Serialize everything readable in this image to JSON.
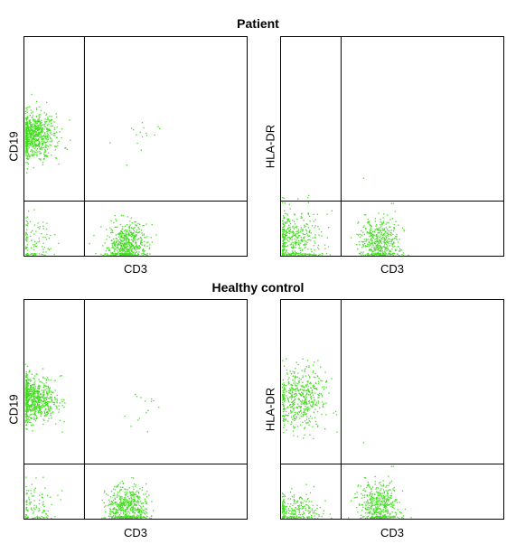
{
  "chart_data": [
    {
      "type": "scatter",
      "section": "Patient",
      "xlabel": "CD3",
      "ylabel": "CD19",
      "xlim": [
        0,
        1
      ],
      "ylim": [
        0,
        1
      ],
      "gates": {
        "x": 0.27,
        "y": 0.25
      },
      "color": "#44dd22",
      "populations": [
        {
          "cx": 0.04,
          "cy": 0.55,
          "sx": 0.05,
          "sy": 0.05,
          "n": 750
        },
        {
          "cx": 0.46,
          "cy": 0.05,
          "sx": 0.045,
          "sy": 0.05,
          "n": 550
        },
        {
          "cx": 0.04,
          "cy": 0.05,
          "sx": 0.05,
          "sy": 0.06,
          "n": 110
        },
        {
          "cx": 0.5,
          "cy": 0.52,
          "sx": 0.05,
          "sy": 0.06,
          "n": 16
        }
      ]
    },
    {
      "type": "scatter",
      "section": "Patient",
      "xlabel": "CD3",
      "ylabel": "HLA-DR",
      "xlim": [
        0,
        1
      ],
      "ylim": [
        0,
        1
      ],
      "gates": {
        "x": 0.27,
        "y": 0.25
      },
      "color": "#44dd22",
      "populations": [
        {
          "cx": 0.05,
          "cy": 0.07,
          "sx": 0.07,
          "sy": 0.07,
          "n": 450
        },
        {
          "cx": 0.44,
          "cy": 0.06,
          "sx": 0.045,
          "sy": 0.055,
          "n": 450
        },
        {
          "cx": 0.37,
          "cy": 0.36,
          "sx": 0.004,
          "sy": 0.004,
          "n": 1
        }
      ]
    },
    {
      "type": "scatter",
      "section": "Healthy control",
      "xlabel": "CD3",
      "ylabel": "CD19",
      "xlim": [
        0,
        1
      ],
      "ylim": [
        0,
        1
      ],
      "gates": {
        "x": 0.27,
        "y": 0.25
      },
      "color": "#44dd22",
      "populations": [
        {
          "cx": 0.04,
          "cy": 0.55,
          "sx": 0.05,
          "sy": 0.05,
          "n": 750
        },
        {
          "cx": 0.46,
          "cy": 0.05,
          "sx": 0.045,
          "sy": 0.05,
          "n": 550
        },
        {
          "cx": 0.04,
          "cy": 0.05,
          "sx": 0.05,
          "sy": 0.06,
          "n": 110
        },
        {
          "cx": 0.5,
          "cy": 0.52,
          "sx": 0.05,
          "sy": 0.06,
          "n": 16
        }
      ]
    },
    {
      "type": "scatter",
      "section": "Healthy control",
      "xlabel": "CD3",
      "ylabel": "HLA-DR",
      "xlim": [
        0,
        1
      ],
      "ylim": [
        0,
        1
      ],
      "gates": {
        "x": 0.27,
        "y": 0.25
      },
      "color": "#44dd22",
      "populations": [
        {
          "cx": 0.08,
          "cy": 0.55,
          "sx": 0.06,
          "sy": 0.07,
          "n": 500
        },
        {
          "cx": 0.05,
          "cy": 0.04,
          "sx": 0.06,
          "sy": 0.04,
          "n": 250
        },
        {
          "cx": 0.44,
          "cy": 0.06,
          "sx": 0.045,
          "sy": 0.055,
          "n": 450
        },
        {
          "cx": 0.37,
          "cy": 0.35,
          "sx": 0.004,
          "sy": 0.004,
          "n": 1
        }
      ]
    }
  ],
  "sections": {
    "patient_title": "Patient",
    "control_title": "Healthy control"
  }
}
